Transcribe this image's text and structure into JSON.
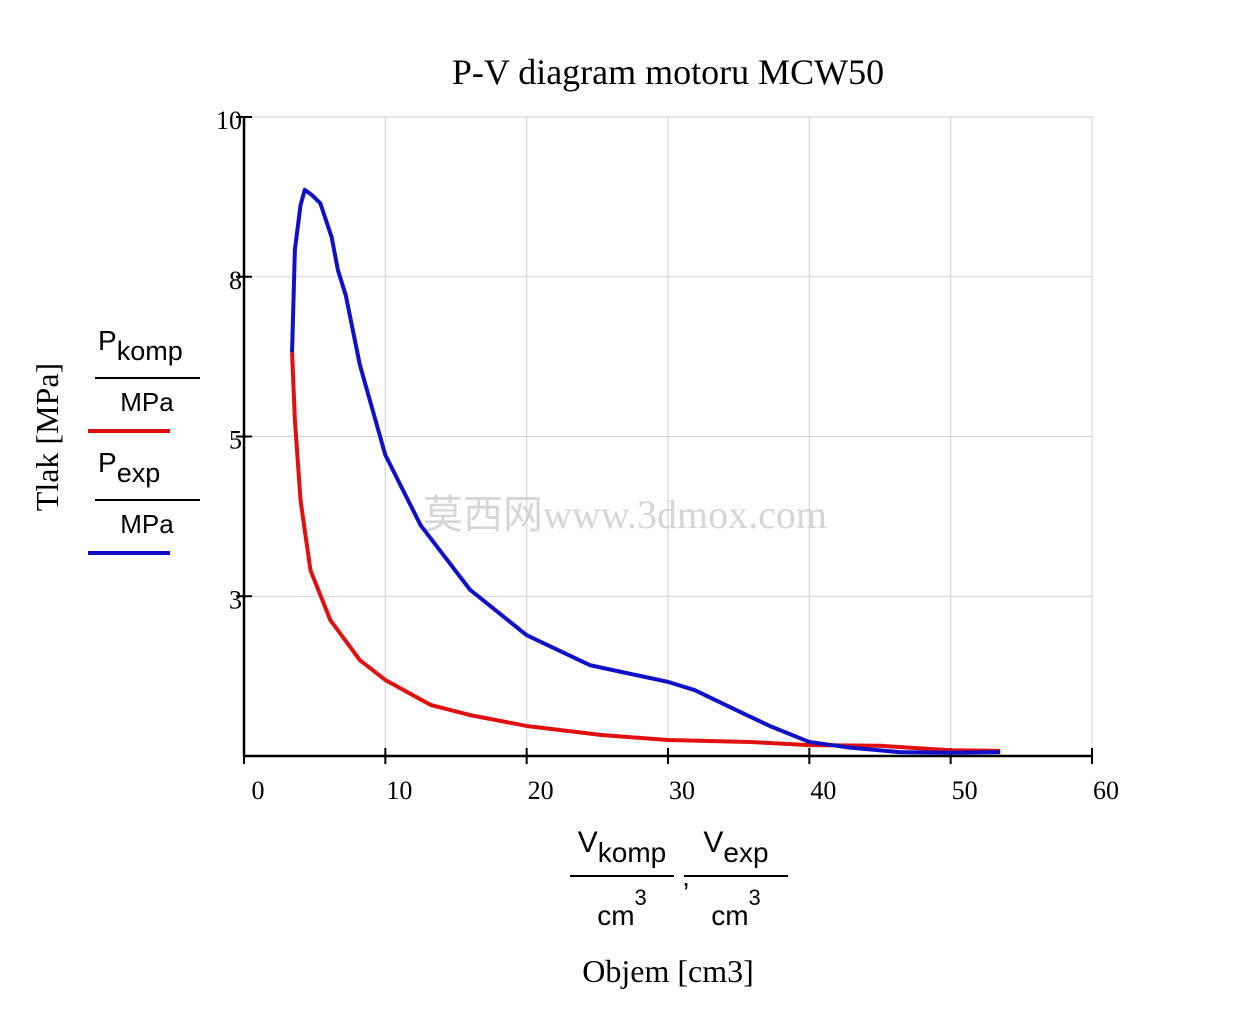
{
  "chart_data": {
    "type": "line",
    "title": "P-V diagram motoru MCW50",
    "y_label": "Tlak [MPa]",
    "x_label": "Objem [cm3]",
    "x_label_terms": [
      {
        "symbol": "V",
        "subscript": "komp",
        "unit": "cm",
        "power": "3"
      },
      {
        "symbol": "V",
        "subscript": "exp",
        "unit": "cm",
        "power": "3"
      }
    ],
    "x_label_separator": ",",
    "watermark": "莫西网www.3dmox.com",
    "xlim": [
      0,
      60
    ],
    "xticks": [
      0,
      10,
      20,
      30,
      40,
      50,
      60
    ],
    "ylim": [
      0,
      10
    ],
    "yticks": [
      {
        "value": 2.5,
        "label": "3"
      },
      {
        "value": 5,
        "label": "5"
      },
      {
        "value": 7.5,
        "label": "8"
      },
      10
    ],
    "grid": true,
    "series": [
      {
        "name": "P",
        "subscript": "komp",
        "unit": "MPa",
        "color": "#e01010",
        "x": [
          53.5,
          50,
          45,
          40,
          35.8,
          30,
          25.2,
          20,
          16,
          13.2,
          10,
          8.2,
          6.1,
          4.7,
          4.0,
          3.6,
          3.4
        ],
        "values": [
          0.08,
          0.09,
          0.16,
          0.17,
          0.22,
          0.25,
          0.33,
          0.47,
          0.64,
          0.8,
          1.19,
          1.5,
          2.13,
          2.91,
          4.0,
          5.26,
          6.32
        ]
      },
      {
        "name": "P",
        "subscript": "exp",
        "unit": "MPa",
        "color": "#1010c8",
        "x": [
          3.4,
          3.6,
          4.0,
          4.3,
          4.8,
          5.4,
          6.2,
          6.65,
          7.2,
          8.2,
          10,
          12.5,
          16,
          20,
          24.5,
          30,
          31.9,
          35.1,
          37.2,
          40,
          42.9,
          46.4,
          50,
          53.5
        ],
        "values": [
          6.32,
          7.92,
          8.62,
          8.86,
          8.78,
          8.65,
          8.12,
          7.6,
          7.21,
          6.12,
          4.71,
          3.61,
          2.6,
          1.89,
          1.42,
          1.16,
          1.03,
          0.69,
          0.47,
          0.22,
          0.13,
          0.06,
          0.05,
          0.06
        ]
      }
    ]
  }
}
